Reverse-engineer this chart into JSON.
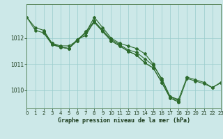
{
  "title": "Graphe pression niveau de la mer (hPa)",
  "background_color": "#cce8e8",
  "line_color": "#2d6b2d",
  "grid_color": "#99cccc",
  "xlim": [
    0,
    23
  ],
  "ylim": [
    1009.3,
    1013.3
  ],
  "yticks": [
    1010,
    1011,
    1012
  ],
  "xticks": [
    0,
    1,
    2,
    3,
    4,
    5,
    6,
    7,
    8,
    9,
    10,
    11,
    12,
    13,
    14,
    15,
    16,
    17,
    18,
    19,
    20,
    21,
    22,
    23
  ],
  "series": [
    {
      "x": [
        0,
        1,
        2,
        3,
        4,
        5,
        6,
        7,
        8,
        9,
        10,
        11,
        12,
        13,
        14,
        15,
        16,
        17,
        18
      ],
      "y": [
        1012.8,
        1012.4,
        1012.3,
        1011.8,
        1011.7,
        1011.7,
        1011.9,
        1012.2,
        1012.8,
        1012.4,
        1012.0,
        1011.8,
        1011.7,
        1011.6,
        1011.4,
        1011.0,
        1010.4,
        1009.75,
        1009.6
      ]
    },
    {
      "x": [
        0,
        1,
        2,
        3,
        4,
        5,
        6,
        7,
        8,
        9,
        10,
        11,
        12,
        13,
        14,
        15,
        16,
        17,
        18,
        19,
        20,
        21,
        22,
        23
      ],
      "y": [
        1012.8,
        1012.3,
        1012.2,
        1011.8,
        1011.65,
        1011.6,
        1011.95,
        1012.1,
        1012.65,
        1012.3,
        1011.95,
        1011.75,
        1011.55,
        1011.45,
        1011.2,
        1010.95,
        1010.45,
        1009.75,
        1009.65,
        1010.5,
        1010.4,
        1010.3,
        1010.1,
        1010.3
      ]
    },
    {
      "x": [
        2,
        3,
        4,
        5,
        6,
        7,
        8,
        9,
        10,
        11,
        12,
        13,
        14,
        15,
        16,
        17,
        18
      ],
      "y": [
        1012.2,
        1011.75,
        1011.65,
        1011.6,
        1011.9,
        1012.25,
        1012.65,
        1012.25,
        1011.9,
        1011.7,
        1011.5,
        1011.35,
        1011.05,
        1010.85,
        1010.3,
        1009.7,
        1009.55
      ]
    },
    {
      "x": [
        2,
        3,
        4,
        5,
        6,
        7,
        8,
        9,
        10,
        11,
        12,
        13,
        14,
        15,
        16,
        17,
        18,
        19,
        20,
        21,
        22,
        23
      ],
      "y": [
        1012.25,
        1011.75,
        1011.65,
        1011.6,
        1011.95,
        1012.2,
        1012.6,
        1012.25,
        1011.9,
        1011.7,
        1011.5,
        1011.35,
        1011.05,
        1010.85,
        1010.3,
        1009.7,
        1009.55,
        1010.45,
        1010.35,
        1010.25,
        1010.1,
        1010.28
      ]
    }
  ]
}
